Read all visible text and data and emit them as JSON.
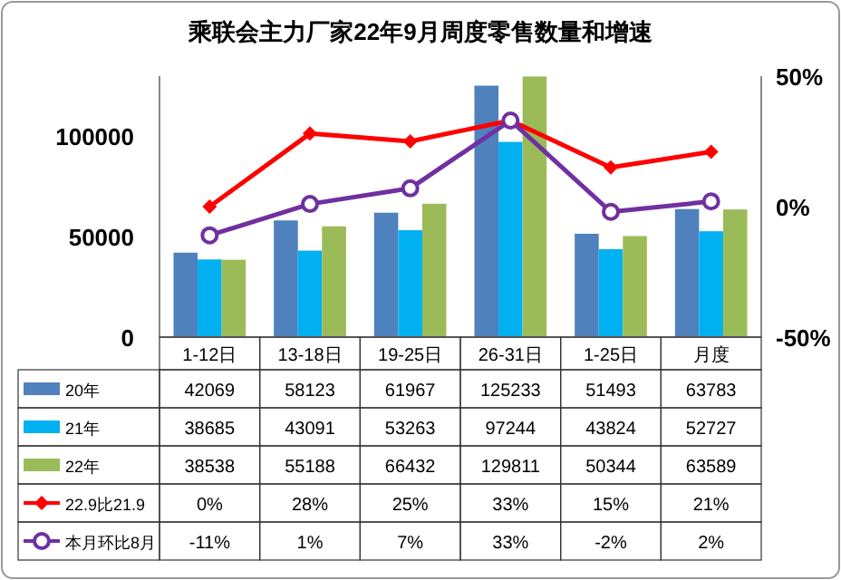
{
  "chart_data": {
    "type": "bar",
    "title": "乘联会主力厂家22年9月周度零售数量和增速",
    "categories": [
      "1-12日",
      "13-18日",
      "19-25日",
      "26-31日",
      "1-25日",
      "月度"
    ],
    "series": [
      {
        "name": "20年",
        "color": "#4f81bd",
        "values": [
          42069,
          58123,
          61967,
          125233,
          51493,
          63783
        ],
        "value_labels": [
          "42069",
          "58123",
          "61967",
          "125233",
          "51493",
          "63783"
        ]
      },
      {
        "name": "21年",
        "color": "#00b0f0",
        "values": [
          38685,
          43091,
          53263,
          97244,
          43824,
          52727
        ],
        "value_labels": [
          "38685",
          "43091",
          "53263",
          "97244",
          "43824",
          "52727"
        ]
      },
      {
        "name": "22年",
        "color": "#9bbb59",
        "values": [
          38538,
          55188,
          66432,
          129811,
          50344,
          63589
        ],
        "value_labels": [
          "38538",
          "55188",
          "66432",
          "129811",
          "50344",
          "63589"
        ]
      },
      {
        "name": "22.9比21.9",
        "type": "line",
        "axis": "y2",
        "color": "#ff0000",
        "marker": "diamond",
        "values": [
          0,
          28,
          25,
          33,
          15,
          21
        ],
        "value_labels": [
          "0%",
          "28%",
          "25%",
          "33%",
          "15%",
          "21%"
        ]
      },
      {
        "name": "本月环比8月",
        "type": "line",
        "axis": "y2",
        "color": "#7030a0",
        "marker": "circle",
        "values": [
          -11,
          1,
          7,
          33,
          -2,
          2
        ],
        "value_labels": [
          "-11%",
          "1%",
          "7%",
          "33%",
          "-2%",
          "2%"
        ]
      }
    ],
    "ylim": [
      0,
      130000
    ],
    "yticks": [
      0,
      50000,
      100000
    ],
    "y2lim": [
      -50,
      50
    ],
    "y2ticks": [
      {
        "value": -50,
        "label": "-50%"
      },
      {
        "value": 0,
        "label": "0%"
      },
      {
        "value": 50,
        "label": "50%"
      }
    ],
    "legend": "bottom",
    "grid": false
  }
}
